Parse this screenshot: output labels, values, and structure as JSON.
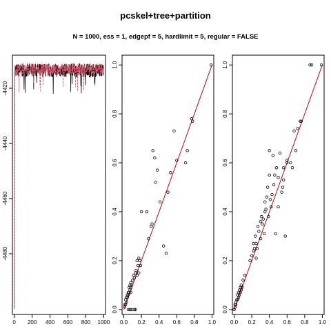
{
  "title": "pcskel+tree+partition",
  "subtitle": "N = 1000, ess = 1, edgepf = 5, hardlimit = 5, regular = FALSE",
  "colors": {
    "trace_black": "#000000",
    "trace_red": "#DF536B",
    "diag": "#CC0000",
    "points": "#000000"
  },
  "chart_data": [
    {
      "type": "line",
      "panel": "trace",
      "xlim": [
        -20,
        1020
      ],
      "ylim": [
        -4502,
        -4408
      ],
      "xticks": [
        0,
        200,
        400,
        600,
        800,
        1000
      ],
      "yticks": [
        -4420,
        -4440,
        -4460,
        -4480
      ],
      "xtick_labels": [
        "0",
        "200",
        "400",
        "600",
        "800",
        "1000"
      ],
      "ytick_labels": [
        "-4420",
        "-4440",
        "-4460",
        "-4480"
      ],
      "series": [
        {
          "color": "black",
          "start": -4500,
          "level_range": [
            -4416,
            -4411
          ]
        },
        {
          "color": "red",
          "start": -4500,
          "level_range": [
            -4415.5,
            -4411
          ]
        }
      ]
    },
    {
      "type": "scatter",
      "panel": "scatter-1",
      "xlim": [
        -0.02,
        1.02
      ],
      "ylim": [
        -0.02,
        1.04
      ],
      "xticks": [
        0,
        0.2,
        0.4,
        0.6,
        0.8,
        1
      ],
      "yticks": [
        0,
        0.2,
        0.4,
        0.6,
        0.8,
        1
      ],
      "xtick_labels": [
        "0.0",
        "0.2",
        "0.4",
        "0.6",
        "0.8",
        "1.0"
      ],
      "ytick_labels": [
        "0.0",
        "0.2",
        "0.4",
        "0.6",
        "0.8",
        "1.0"
      ],
      "reference_line": [
        [
          0,
          0
        ],
        [
          1,
          1
        ]
      ],
      "points": [
        [
          0.01,
          0.01
        ],
        [
          0.01,
          0.02
        ],
        [
          0.02,
          0.02
        ],
        [
          0.02,
          0.04
        ],
        [
          0.03,
          0.03
        ],
        [
          0.03,
          0.05
        ],
        [
          0.04,
          0.05
        ],
        [
          0.04,
          0.06
        ],
        [
          0.05,
          0.06
        ],
        [
          0.05,
          0.07
        ],
        [
          0.06,
          0.07
        ],
        [
          0.06,
          0.09
        ],
        [
          0.07,
          0.08
        ],
        [
          0.07,
          0.1
        ],
        [
          0.08,
          0.09
        ],
        [
          0.08,
          0.07
        ],
        [
          0.08,
          0.11
        ],
        [
          0.09,
          0.1
        ],
        [
          0.05,
          0
        ],
        [
          0.07,
          0
        ],
        [
          0.09,
          0
        ],
        [
          0.12,
          0
        ],
        [
          0.13,
          0
        ],
        [
          0.1,
          0.12
        ],
        [
          0.11,
          0.14
        ],
        [
          0.12,
          0.13
        ],
        [
          0.13,
          0.15
        ],
        [
          0.14,
          0.16
        ],
        [
          0.15,
          0.14
        ],
        [
          0.15,
          0.2
        ],
        [
          0.16,
          0.18
        ],
        [
          0.17,
          0.21
        ],
        [
          0.17,
          0.15
        ],
        [
          0.18,
          0.2
        ],
        [
          0.19,
          0.18
        ],
        [
          0.2,
          0.4
        ],
        [
          0.26,
          0.4
        ],
        [
          0.28,
          0.29
        ],
        [
          0.31,
          0.34
        ],
        [
          0.32,
          0.35
        ],
        [
          0.33,
          0.65
        ],
        [
          0.35,
          0.62
        ],
        [
          0.36,
          0.52
        ],
        [
          0.38,
          0.57
        ],
        [
          0.41,
          0.44
        ],
        [
          0.45,
          0.26
        ],
        [
          0.48,
          0.23
        ],
        [
          0.5,
          0.48
        ],
        [
          0.53,
          0.56
        ],
        [
          0.57,
          0.73
        ],
        [
          0.6,
          0.61
        ],
        [
          0.7,
          0.6
        ],
        [
          0.72,
          0.65
        ],
        [
          0.77,
          0.78
        ],
        [
          0.78,
          0.77
        ],
        [
          0.99,
          1.0
        ]
      ]
    },
    {
      "type": "scatter",
      "panel": "scatter-2",
      "xlim": [
        -0.02,
        1.02
      ],
      "ylim": [
        -0.02,
        1.04
      ],
      "xticks": [
        0,
        0.2,
        0.4,
        0.6,
        0.8,
        1
      ],
      "yticks": [
        0,
        0.2,
        0.4,
        0.6,
        0.8,
        1
      ],
      "xtick_labels": [
        "0.0",
        "0.2",
        "0.4",
        "0.6",
        "0.8",
        "1.0"
      ],
      "ytick_labels": [
        "0.0",
        "0.2",
        "0.4",
        "0.6",
        "0.8",
        "1.0"
      ],
      "reference_line": [
        [
          0,
          0
        ],
        [
          1,
          1
        ]
      ],
      "points": [
        [
          0.0,
          0.0
        ],
        [
          0.01,
          0.01
        ],
        [
          0.01,
          0.02
        ],
        [
          0.02,
          0.02
        ],
        [
          0.02,
          0.03
        ],
        [
          0.03,
          0.04
        ],
        [
          0.04,
          0.04
        ],
        [
          0.04,
          0.06
        ],
        [
          0.05,
          0.05
        ],
        [
          0.05,
          0.07
        ],
        [
          0.06,
          0.06
        ],
        [
          0.06,
          0.08
        ],
        [
          0.07,
          0.07
        ],
        [
          0.07,
          0.09
        ],
        [
          0.08,
          0.08
        ],
        [
          0.08,
          0.1
        ],
        [
          0.09,
          0.09
        ],
        [
          0.1,
          0.12
        ],
        [
          0.12,
          0.14
        ],
        [
          0.18,
          0.2
        ],
        [
          0.2,
          0.22
        ],
        [
          0.22,
          0.24
        ],
        [
          0.22,
          0.27
        ],
        [
          0.23,
          0.25
        ],
        [
          0.24,
          0.3
        ],
        [
          0.25,
          0.21
        ],
        [
          0.25,
          0.27
        ],
        [
          0.26,
          0.25
        ],
        [
          0.27,
          0.34
        ],
        [
          0.28,
          0.32
        ],
        [
          0.3,
          0.29
        ],
        [
          0.3,
          0.36
        ],
        [
          0.31,
          0.38
        ],
        [
          0.32,
          0.35
        ],
        [
          0.33,
          0.37
        ],
        [
          0.34,
          0.31
        ],
        [
          0.35,
          0.4
        ],
        [
          0.35,
          0.44
        ],
        [
          0.36,
          0.41
        ],
        [
          0.37,
          0.46
        ],
        [
          0.38,
          0.5
        ],
        [
          0.39,
          0.38
        ],
        [
          0.4,
          0.55
        ],
        [
          0.4,
          0.65
        ],
        [
          0.41,
          0.45
        ],
        [
          0.42,
          0.42
        ],
        [
          0.43,
          0.47
        ],
        [
          0.44,
          0.63
        ],
        [
          0.45,
          0.51
        ],
        [
          0.46,
          0.55
        ],
        [
          0.47,
          0.31
        ],
        [
          0.48,
          0.58
        ],
        [
          0.5,
          0.42
        ],
        [
          0.5,
          0.54
        ],
        [
          0.52,
          0.64
        ],
        [
          0.54,
          0.48
        ],
        [
          0.55,
          0.5
        ],
        [
          0.56,
          0.53
        ],
        [
          0.56,
          0.58
        ],
        [
          0.58,
          0.3
        ],
        [
          0.6,
          0.6
        ],
        [
          0.6,
          0.61
        ],
        [
          0.64,
          0.6
        ],
        [
          0.66,
          0.58
        ],
        [
          0.68,
          0.73
        ],
        [
          0.7,
          0.65
        ],
        [
          0.72,
          0.74
        ],
        [
          0.75,
          0.77
        ],
        [
          0.76,
          0.77
        ],
        [
          0.86,
          1.0
        ],
        [
          0.88,
          1.0
        ],
        [
          0.99,
          1.0
        ]
      ]
    }
  ]
}
